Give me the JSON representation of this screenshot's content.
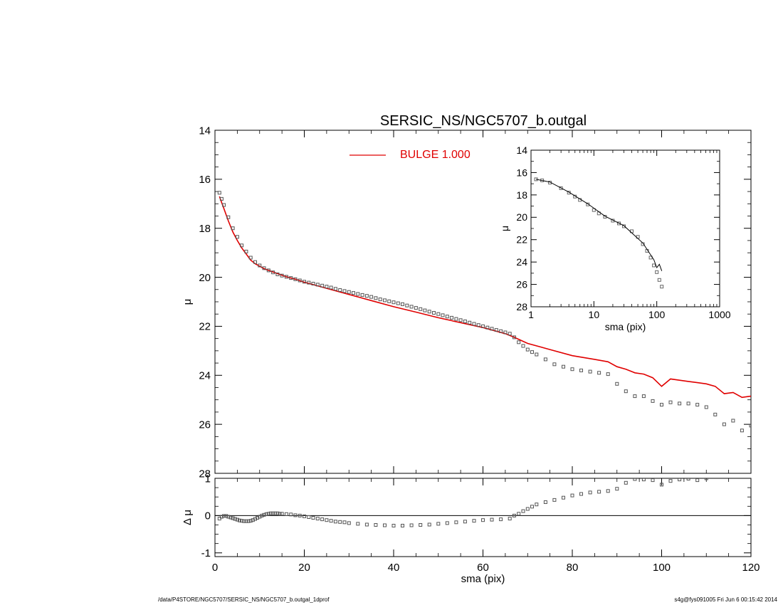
{
  "footer": {
    "left": "/data/P4STORE/NGC5707/SERSIC_NS/NGC5707_b.outgal_1dprof",
    "right": "s4g@fys091005  Fri Jun  6 00:15:42 2014"
  },
  "colors": {
    "model": "#e00000",
    "data": "#555555",
    "axis": "#000000"
  },
  "chart_data": [
    {
      "id": "main",
      "type": "scatter",
      "title": "SERSIC_NS/NGC5707_b.outgal",
      "xlabel": "",
      "ylabel": "μ",
      "xlim": [
        0,
        120
      ],
      "ylim": [
        28,
        14
      ],
      "yticks": [
        14,
        16,
        18,
        20,
        22,
        24,
        26,
        28
      ],
      "xticks": [
        0,
        20,
        40,
        60,
        80,
        100,
        120
      ],
      "legend": {
        "placement": "top-center",
        "label": "BULGE  1.000"
      },
      "series": [
        {
          "name": "BULGE  1.000",
          "kind": "line",
          "x": [
            1.0,
            1.5,
            2,
            3,
            4,
            5,
            6,
            7,
            8,
            9,
            10,
            11,
            12,
            14,
            16,
            18,
            20,
            25,
            30,
            35,
            40,
            45,
            50,
            55,
            60,
            65,
            67,
            70,
            75,
            80,
            85,
            88,
            90,
            92,
            94,
            96,
            98,
            100,
            102,
            104,
            106,
            108,
            110,
            112,
            114,
            116,
            118,
            120
          ],
          "y": [
            16.7,
            16.95,
            17.2,
            17.7,
            18.15,
            18.5,
            18.8,
            19.05,
            19.3,
            19.45,
            19.55,
            19.65,
            19.72,
            19.85,
            19.98,
            20.08,
            20.2,
            20.45,
            20.7,
            20.95,
            21.2,
            21.42,
            21.65,
            21.85,
            22.05,
            22.3,
            22.45,
            22.7,
            22.95,
            23.2,
            23.35,
            23.45,
            23.65,
            23.75,
            23.9,
            23.95,
            24.1,
            24.45,
            24.15,
            24.2,
            24.25,
            24.3,
            24.35,
            24.45,
            24.75,
            24.7,
            24.9,
            24.85
          ]
        },
        {
          "name": "",
          "kind": "points",
          "x": [
            1.0,
            1.5,
            2,
            3,
            4,
            5,
            6,
            7,
            8,
            9,
            10,
            11,
            12,
            13,
            14,
            15,
            16,
            17,
            18,
            19,
            20,
            21,
            22,
            23,
            24,
            25,
            26,
            27,
            28,
            29,
            30,
            31,
            32,
            33,
            34,
            35,
            36,
            37,
            38,
            39,
            40,
            41,
            42,
            43,
            44,
            45,
            46,
            47,
            48,
            49,
            50,
            51,
            52,
            53,
            54,
            55,
            56,
            57,
            58,
            59,
            60,
            61,
            62,
            63,
            64,
            65,
            66,
            67,
            68,
            69,
            70,
            71,
            72,
            74,
            76,
            78,
            80,
            82,
            84,
            86,
            88,
            90,
            92,
            94,
            96,
            98,
            100,
            102,
            104,
            106,
            108,
            110,
            112,
            114,
            116,
            118,
            120
          ],
          "y": [
            16.55,
            16.8,
            17.05,
            17.55,
            18.0,
            18.35,
            18.7,
            18.95,
            19.2,
            19.38,
            19.52,
            19.63,
            19.72,
            19.8,
            19.88,
            19.93,
            19.98,
            20.03,
            20.08,
            20.13,
            20.18,
            20.22,
            20.26,
            20.3,
            20.34,
            20.38,
            20.42,
            20.47,
            20.52,
            20.56,
            20.6,
            20.64,
            20.68,
            20.72,
            20.76,
            20.8,
            20.85,
            20.9,
            20.94,
            20.98,
            21.02,
            21.06,
            21.1,
            21.15,
            21.2,
            21.25,
            21.3,
            21.35,
            21.4,
            21.45,
            21.5,
            21.55,
            21.6,
            21.65,
            21.7,
            21.75,
            21.8,
            21.85,
            21.9,
            21.95,
            22.0,
            22.05,
            22.1,
            22.15,
            22.2,
            22.25,
            22.3,
            22.45,
            22.65,
            22.8,
            22.95,
            23.05,
            23.15,
            23.35,
            23.55,
            23.65,
            23.75,
            23.8,
            23.85,
            23.9,
            23.95,
            24.35,
            24.65,
            24.85,
            24.85,
            25.05,
            25.2,
            25.1,
            25.15,
            25.15,
            25.2,
            25.3,
            25.6,
            26.0,
            25.85,
            26.25,
            26.05
          ]
        }
      ]
    },
    {
      "id": "inset",
      "type": "scatter",
      "title": "",
      "xlabel": "sma (pix)",
      "ylabel": "μ",
      "xscale": "log",
      "xlim": [
        1,
        1000
      ],
      "ylim": [
        28,
        14
      ],
      "yticks": [
        14,
        16,
        18,
        20,
        22,
        24,
        26,
        28
      ],
      "xticks": [
        1,
        10,
        100,
        1000
      ],
      "series": [
        {
          "name": "",
          "kind": "points",
          "x": [
            1.2,
            1.5,
            2,
            3,
            4,
            5,
            6,
            8,
            10,
            12,
            15,
            20,
            25,
            30,
            40,
            50,
            60,
            70,
            80,
            90,
            100,
            110,
            120
          ],
          "y": [
            16.6,
            16.7,
            16.9,
            17.4,
            17.8,
            18.15,
            18.45,
            18.85,
            19.35,
            19.65,
            19.95,
            20.3,
            20.55,
            20.8,
            21.25,
            21.75,
            22.4,
            23.0,
            23.6,
            24.3,
            24.9,
            25.6,
            26.2
          ]
        },
        {
          "name": "",
          "kind": "line",
          "x": [
            1.2,
            2,
            4,
            8,
            15,
            30,
            60,
            90,
            100,
            110,
            120
          ],
          "y": [
            16.6,
            16.85,
            17.75,
            18.8,
            19.9,
            20.75,
            22.3,
            23.8,
            24.5,
            24.2,
            24.8
          ]
        }
      ]
    },
    {
      "id": "residual",
      "type": "scatter",
      "title": "",
      "xlabel": "sma (pix)",
      "ylabel": "Δ μ",
      "xlim": [
        0,
        120
      ],
      "ylim": [
        -1.1,
        1.0
      ],
      "yticks": [
        -1,
        0,
        1
      ],
      "xticks": [
        0,
        20,
        40,
        60,
        80,
        100,
        120
      ],
      "xticklabels": [
        "0",
        "20",
        "40",
        "60",
        "80",
        "100",
        "120"
      ],
      "series": [
        {
          "name": "",
          "kind": "points",
          "x": [
            1,
            1.5,
            2,
            2.5,
            3,
            3.5,
            4,
            4.5,
            5,
            5.5,
            6,
            6.5,
            7,
            7.5,
            8,
            8.5,
            9,
            9.5,
            10,
            10.5,
            11,
            11.5,
            12,
            12.5,
            13,
            13.5,
            14,
            14.5,
            15,
            16,
            17,
            18,
            19,
            20,
            21,
            22,
            23,
            24,
            25,
            26,
            27,
            28,
            29,
            30,
            32,
            34,
            36,
            38,
            40,
            42,
            44,
            46,
            48,
            50,
            52,
            54,
            56,
            58,
            60,
            62,
            64,
            66,
            67,
            68,
            69,
            70,
            71,
            72,
            74,
            76,
            78,
            80,
            82,
            84,
            86,
            88,
            90,
            92,
            94,
            96,
            98,
            100,
            102,
            104,
            106,
            108,
            110
          ],
          "y": [
            -0.08,
            -0.03,
            -0.01,
            -0.01,
            -0.03,
            -0.05,
            -0.07,
            -0.09,
            -0.11,
            -0.13,
            -0.14,
            -0.15,
            -0.15,
            -0.15,
            -0.14,
            -0.12,
            -0.09,
            -0.06,
            -0.03,
            0.0,
            0.02,
            0.04,
            0.05,
            0.06,
            0.06,
            0.06,
            0.06,
            0.05,
            0.05,
            0.04,
            0.03,
            0.01,
            0.0,
            -0.02,
            -0.04,
            -0.06,
            -0.08,
            -0.1,
            -0.12,
            -0.14,
            -0.16,
            -0.17,
            -0.18,
            -0.2,
            -0.22,
            -0.24,
            -0.25,
            -0.26,
            -0.27,
            -0.27,
            -0.26,
            -0.25,
            -0.24,
            -0.22,
            -0.2,
            -0.18,
            -0.16,
            -0.14,
            -0.12,
            -0.11,
            -0.1,
            -0.08,
            0.0,
            0.05,
            0.12,
            0.18,
            0.24,
            0.3,
            0.36,
            0.42,
            0.48,
            0.54,
            0.58,
            0.62,
            0.64,
            0.66,
            0.72,
            0.88,
            0.98,
            0.97,
            0.95,
            0.83,
            0.93,
            0.97,
            0.99,
            0.95,
            1.0
          ]
        }
      ]
    }
  ]
}
